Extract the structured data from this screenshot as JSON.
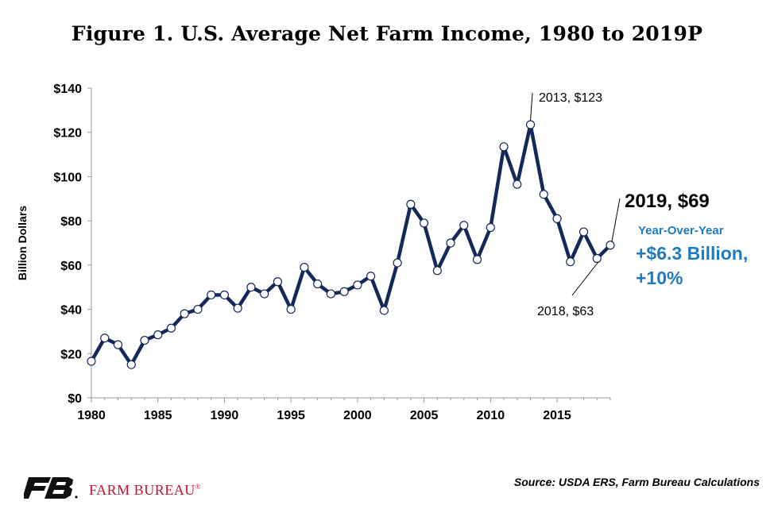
{
  "title": "Figure 1. U.S. Average Net Farm Income, 1980 to 2019P",
  "source": "Source: USDA ERS, Farm Bureau Calculations",
  "brand": {
    "name": "FARM BUREAU",
    "mark": "®",
    "color": "#c8102e"
  },
  "colors": {
    "line": "#14285a",
    "callout_blue": "#1f7bc1"
  },
  "chart_data": {
    "type": "line",
    "ylabel": "Billion Dollars",
    "xlabel": "",
    "xlim": [
      1980,
      2019
    ],
    "ylim": [
      0,
      140
    ],
    "x_ticks": [
      "1980",
      "1985",
      "1990",
      "1995",
      "2000",
      "2005",
      "2010",
      "2015"
    ],
    "y_ticks": [
      "$0",
      "$20",
      "$40",
      "$60",
      "$80",
      "$100",
      "$120",
      "$140"
    ],
    "grid": false,
    "x": [
      1980,
      1981,
      1982,
      1983,
      1984,
      1985,
      1986,
      1987,
      1988,
      1989,
      1990,
      1991,
      1992,
      1993,
      1994,
      1995,
      1996,
      1997,
      1998,
      1999,
      2000,
      2001,
      2002,
      2003,
      2004,
      2005,
      2006,
      2007,
      2008,
      2009,
      2010,
      2011,
      2012,
      2013,
      2014,
      2015,
      2016,
      2017,
      2018,
      2019
    ],
    "values": [
      16.5,
      27,
      24,
      15,
      26,
      28.5,
      31.5,
      38,
      40,
      46.5,
      46.5,
      40.5,
      50,
      47,
      52.5,
      40,
      59,
      51.5,
      47,
      48,
      51,
      55,
      39.5,
      61,
      87.5,
      79,
      57.5,
      70,
      78,
      62.5,
      77,
      113.5,
      96.5,
      123.5,
      92,
      81,
      61.5,
      75,
      63,
      69
    ],
    "annotations": [
      {
        "text": "2013, $123",
        "x": 2013,
        "y": 123.5
      },
      {
        "text": "2018, $63",
        "x": 2018,
        "y": 63
      },
      {
        "text": "2019, $69",
        "x": 2019,
        "y": 69
      }
    ],
    "callout": {
      "heading": "Year-Over-Year",
      "line1": "+$6.3 Billion,",
      "line2": "+10%"
    }
  }
}
